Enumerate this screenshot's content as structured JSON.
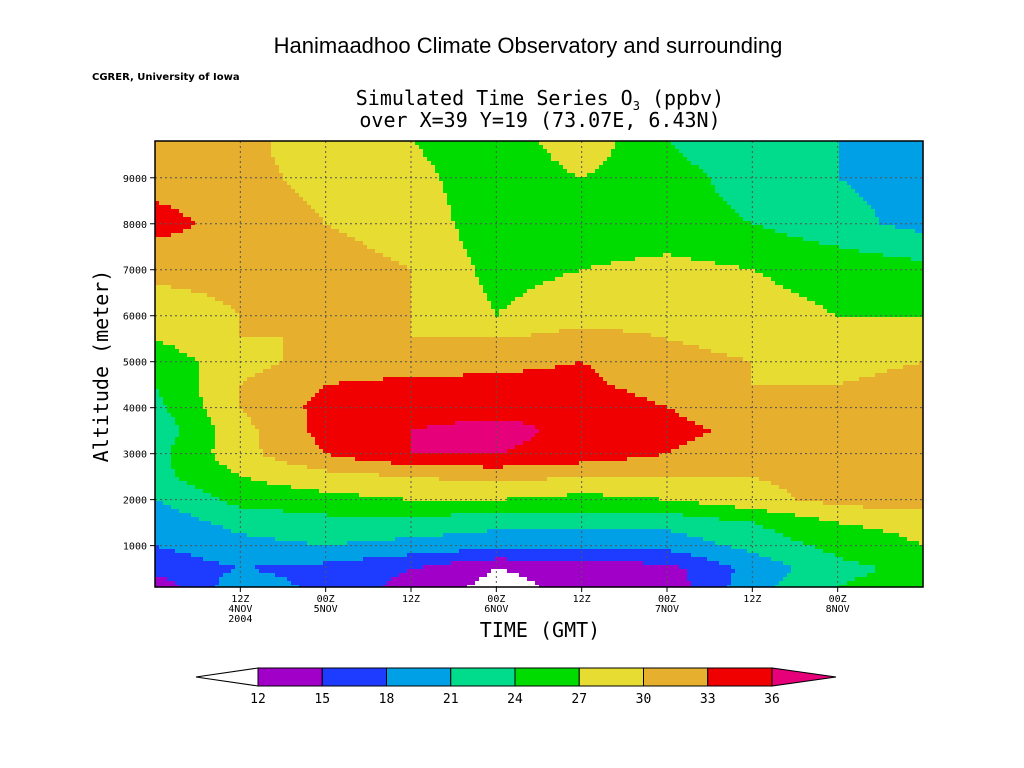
{
  "page": {
    "title": "Hanimaadhoo Climate Observatory and surrounding",
    "credit": "CGRER, University of Iowa"
  },
  "chart_data": {
    "type": "heatmap",
    "title": "Simulated Time Series O3 (ppbv)",
    "title_line1_prefix": "Simulated Time Series O",
    "title_line1_sub": "3",
    "title_line1_suffix": " (ppbv)",
    "title_line2": "over X=39 Y=19 (73.07E, 6.43N)",
    "xlabel": "TIME (GMT)",
    "ylabel": "Altitude (meter)",
    "x_unit": "hours since 2004-11-03 12Z",
    "xlim": [
      0,
      108
    ],
    "ylim": [
      100,
      9800
    ],
    "grid": true,
    "x_ticks": [
      {
        "value": 12,
        "lines": [
          "12Z",
          "4NOV",
          "2004"
        ]
      },
      {
        "value": 24,
        "lines": [
          "00Z",
          "5NOV"
        ]
      },
      {
        "value": 36,
        "lines": [
          "12Z"
        ]
      },
      {
        "value": 48,
        "lines": [
          "00Z",
          "6NOV"
        ]
      },
      {
        "value": 60,
        "lines": [
          "12Z"
        ]
      },
      {
        "value": 72,
        "lines": [
          "00Z",
          "7NOV"
        ]
      },
      {
        "value": 84,
        "lines": [
          "12Z"
        ]
      },
      {
        "value": 96,
        "lines": [
          "00Z",
          "8NOV"
        ]
      }
    ],
    "y_ticks": [
      1000,
      2000,
      3000,
      4000,
      5000,
      6000,
      7000,
      8000,
      9000
    ],
    "colorbar": {
      "levels": [
        12,
        15,
        18,
        21,
        24,
        27,
        30,
        33,
        36
      ],
      "colors": [
        "#ffffff",
        "#a000c8",
        "#1e3cff",
        "#00a0e6",
        "#00dc8c",
        "#00dc00",
        "#e6dc32",
        "#e6af2d",
        "#f00000",
        "#e6007a"
      ]
    },
    "x": [
      0,
      12,
      24,
      36,
      48,
      60,
      72,
      84,
      96,
      108
    ],
    "y": [
      100,
      500,
      1000,
      1500,
      2000,
      2500,
      3000,
      3500,
      4000,
      4500,
      5000,
      5500,
      6000,
      7000,
      8000,
      9000,
      9800
    ],
    "z": [
      [
        13,
        20,
        17,
        14,
        11,
        13,
        13,
        20,
        24,
        26
      ],
      [
        16,
        18,
        17,
        15,
        12,
        13,
        14,
        19,
        23,
        25
      ],
      [
        18,
        20,
        21,
        20,
        19,
        19,
        19,
        22,
        25,
        27
      ],
      [
        19,
        22,
        23,
        23,
        22,
        22,
        22,
        24,
        27,
        28
      ],
      [
        21,
        25,
        26,
        27,
        27,
        26,
        27,
        29,
        31,
        32
      ],
      [
        23,
        27,
        29,
        30,
        31,
        30,
        30,
        30,
        31,
        32
      ],
      [
        23,
        29,
        33,
        36,
        36,
        35,
        33,
        31,
        31,
        31
      ],
      [
        22,
        29,
        34,
        36,
        37,
        35,
        34,
        32,
        31,
        31
      ],
      [
        23,
        30,
        34,
        35,
        35,
        36,
        33,
        31,
        31,
        32
      ],
      [
        24,
        30,
        33,
        34,
        34,
        34,
        31,
        30,
        30,
        31
      ],
      [
        25,
        29,
        31,
        31,
        32,
        33,
        31,
        30,
        29,
        30
      ],
      [
        27,
        30,
        30,
        30,
        30,
        31,
        30,
        29,
        29,
        29
      ],
      [
        28,
        30,
        31,
        30,
        27,
        29,
        29,
        28,
        27,
        27
      ],
      [
        31,
        31,
        31,
        30,
        26,
        27,
        28,
        27,
        26,
        25
      ],
      [
        34,
        32,
        30,
        29,
        25,
        25,
        25,
        24,
        22,
        20
      ],
      [
        32,
        31,
        29,
        28,
        25,
        27,
        25,
        23,
        21,
        20
      ],
      [
        31,
        31,
        28,
        27,
        25,
        29,
        24,
        22,
        21,
        20
      ]
    ]
  }
}
